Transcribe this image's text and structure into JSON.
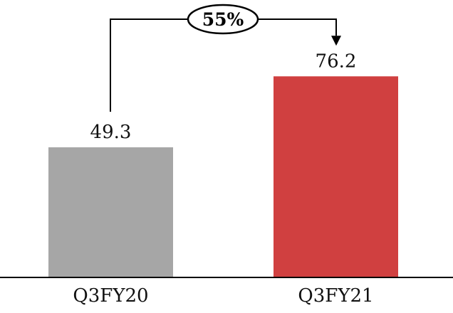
{
  "chart_data": {
    "type": "bar",
    "categories": [
      "Q3FY20",
      "Q3FY21"
    ],
    "values": [
      49.3,
      76.2
    ],
    "value_labels": [
      "49.3",
      "76.2"
    ],
    "colors": [
      "#a6a6a6",
      "#d04040"
    ],
    "ylim": [
      0,
      85
    ],
    "grid": false,
    "legend": "none",
    "annotation": {
      "label": "55%",
      "from": "Q3FY20",
      "to": "Q3FY21",
      "style": "bracket-arrow"
    }
  }
}
